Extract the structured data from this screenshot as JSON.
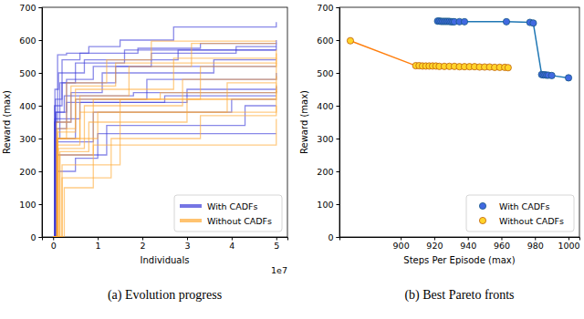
{
  "chart_data": [
    {
      "type": "line",
      "title": "(a) Evolution progress",
      "x_label": "Individuals",
      "y_label": "Reward (max)",
      "annotations": [
        "1e7"
      ],
      "line_style": "steps",
      "legend": "lower right",
      "grid": false,
      "xlim": [
        -0.25,
        5.25
      ],
      "xticks": [
        0,
        1,
        2,
        3,
        4,
        5
      ],
      "ylim": [
        0,
        700
      ],
      "yticks": [
        0,
        100,
        200,
        300,
        400,
        500,
        600,
        700
      ],
      "series": [
        {
          "name": "With CADFs",
          "color": "#3b3bd9",
          "runs": [
            {
              "x": [
                0,
                0.03,
                0.1,
                0.3,
                0.8,
                1.5,
                2.7,
                5
              ],
              "values": [
                0,
                350,
                555,
                560,
                580,
                600,
                640,
                655
              ]
            },
            {
              "x": [
                0,
                0.05,
                0.2,
                0.6,
                1.9,
                3.3,
                5
              ],
              "values": [
                0,
                420,
                540,
                560,
                575,
                590,
                600
              ]
            },
            {
              "x": [
                0,
                0.04,
                0.15,
                0.5,
                1.6,
                5
              ],
              "values": [
                0,
                300,
                470,
                530,
                570,
                590
              ]
            },
            {
              "x": [
                0,
                0.06,
                0.3,
                0.9,
                2.2,
                4.1,
                5
              ],
              "values": [
                0,
                380,
                480,
                520,
                560,
                580,
                580
              ]
            },
            {
              "x": [
                0,
                0.04,
                0.12,
                0.7,
                2.8,
                5
              ],
              "values": [
                0,
                450,
                500,
                540,
                570,
                570
              ]
            },
            {
              "x": [
                0,
                0.05,
                0.4,
                1.1,
                3.6,
                5
              ],
              "values": [
                0,
                350,
                440,
                500,
                540,
                540
              ]
            },
            {
              "x": [
                0,
                0.03,
                0.2,
                1.4,
                5
              ],
              "values": [
                0,
                400,
                470,
                520,
                520
              ]
            },
            {
              "x": [
                0,
                0.08,
                0.5,
                2.1,
                5
              ],
              "values": [
                0,
                300,
                420,
                480,
                500
              ]
            },
            {
              "x": [
                0,
                0.05,
                0.3,
                3.0,
                5
              ],
              "values": [
                0,
                330,
                410,
                450,
                460
              ]
            },
            {
              "x": [
                0,
                0.06,
                0.25,
                1.8,
                5
              ],
              "values": [
                0,
                380,
                430,
                440,
                445
              ]
            },
            {
              "x": [
                0,
                0.04,
                0.6,
                2.5,
                5
              ],
              "values": [
                0,
                360,
                410,
                430,
                430
              ]
            },
            {
              "x": [
                0,
                0.07,
                0.9,
                4.0,
                5
              ],
              "values": [
                0,
                290,
                380,
                420,
                420
              ]
            },
            {
              "x": [
                0,
                0.1,
                1.2,
                4.3,
                5
              ],
              "values": [
                0,
                250,
                340,
                400,
                400
              ]
            },
            {
              "x": [
                0,
                0.1,
                0.5,
                1.0,
                5
              ],
              "values": [
                0,
                200,
                240,
                315,
                315
              ]
            }
          ]
        },
        {
          "name": "Without CADFs",
          "color": "#ffaa33",
          "runs": [
            {
              "x": [
                0,
                0.08,
                0.3,
                1.2,
                2.2,
                5
              ],
              "values": [
                0,
                300,
                470,
                540,
                597,
                597
              ]
            },
            {
              "x": [
                0,
                0.1,
                0.6,
                1.7,
                3.1,
                5
              ],
              "values": [
                0,
                280,
                430,
                520,
                590,
                590
              ]
            },
            {
              "x": [
                0,
                0.1,
                0.5,
                2.7,
                5
              ],
              "values": [
                0,
                330,
                450,
                545,
                570
              ]
            },
            {
              "x": [
                0,
                0.15,
                0.9,
                3.3,
                5
              ],
              "values": [
                0,
                250,
                420,
                520,
                560
              ]
            },
            {
              "x": [
                0,
                0.08,
                0.4,
                1.4,
                5
              ],
              "values": [
                0,
                350,
                460,
                530,
                545
              ]
            },
            {
              "x": [
                0,
                0.12,
                0.7,
                2.9,
                5
              ],
              "values": [
                0,
                270,
                400,
                480,
                530
              ]
            },
            {
              "x": [
                0,
                0.1,
                1.0,
                3.9,
                5
              ],
              "values": [
                0,
                300,
                380,
                470,
                490
              ]
            },
            {
              "x": [
                0,
                0.2,
                1.5,
                5
              ],
              "values": [
                0,
                220,
                420,
                470
              ]
            },
            {
              "x": [
                0,
                0.15,
                0.8,
                3.0,
                5
              ],
              "values": [
                0,
                260,
                350,
                420,
                450
              ]
            },
            {
              "x": [
                0,
                0.1,
                0.6,
                5
              ],
              "values": [
                0,
                300,
                380,
                420
              ]
            },
            {
              "x": [
                0,
                0.2,
                1.3,
                3.3,
                5
              ],
              "values": [
                0,
                180,
                300,
                370,
                400
              ]
            },
            {
              "x": [
                0,
                0.25,
                0.9,
                5
              ],
              "values": [
                0,
                150,
                280,
                360
              ]
            },
            {
              "x": [
                0,
                0.1,
                0.5,
                2.4,
                5
              ],
              "values": [
                0,
                320,
                420,
                440,
                465
              ]
            }
          ]
        }
      ]
    },
    {
      "type": "line",
      "title": "(b) Best Pareto fronts",
      "x_label": "Steps Per Episode (max)",
      "y_label": "Reward (max)",
      "marker": "circle",
      "line_style": "solid",
      "legend": "lower right",
      "grid": false,
      "xlim": [
        863.5,
        1006.5
      ],
      "xticks": [
        900,
        920,
        940,
        960,
        980,
        1000
      ],
      "ylim": [
        0,
        700
      ],
      "yticks": [
        0,
        100,
        200,
        300,
        400,
        500,
        600,
        700
      ],
      "series": [
        {
          "name": "With CADFs",
          "color": "#1f77b4",
          "x": [
            922,
            923,
            924,
            925,
            926,
            927,
            928,
            929,
            930,
            931,
            932,
            935,
            938,
            963,
            977,
            979,
            984,
            985,
            986,
            987,
            988,
            990,
            1000
          ],
          "values": [
            658,
            658,
            657,
            657,
            657,
            657,
            657,
            657,
            656,
            656,
            656,
            656,
            656,
            656,
            654,
            652,
            495,
            494,
            494,
            493,
            493,
            492,
            485
          ]
        },
        {
          "name": "Without CADFs",
          "color": "#ff7f0e",
          "x": [
            870,
            909,
            911,
            913,
            915,
            917,
            919,
            921,
            923,
            926,
            929,
            932,
            935,
            938,
            941,
            944,
            947,
            950,
            953,
            956,
            959,
            962,
            964
          ],
          "values": [
            598,
            522,
            522,
            521,
            521,
            521,
            521,
            521,
            520,
            520,
            520,
            520,
            519,
            519,
            519,
            519,
            518,
            518,
            518,
            517,
            517,
            517,
            516
          ]
        }
      ]
    }
  ]
}
